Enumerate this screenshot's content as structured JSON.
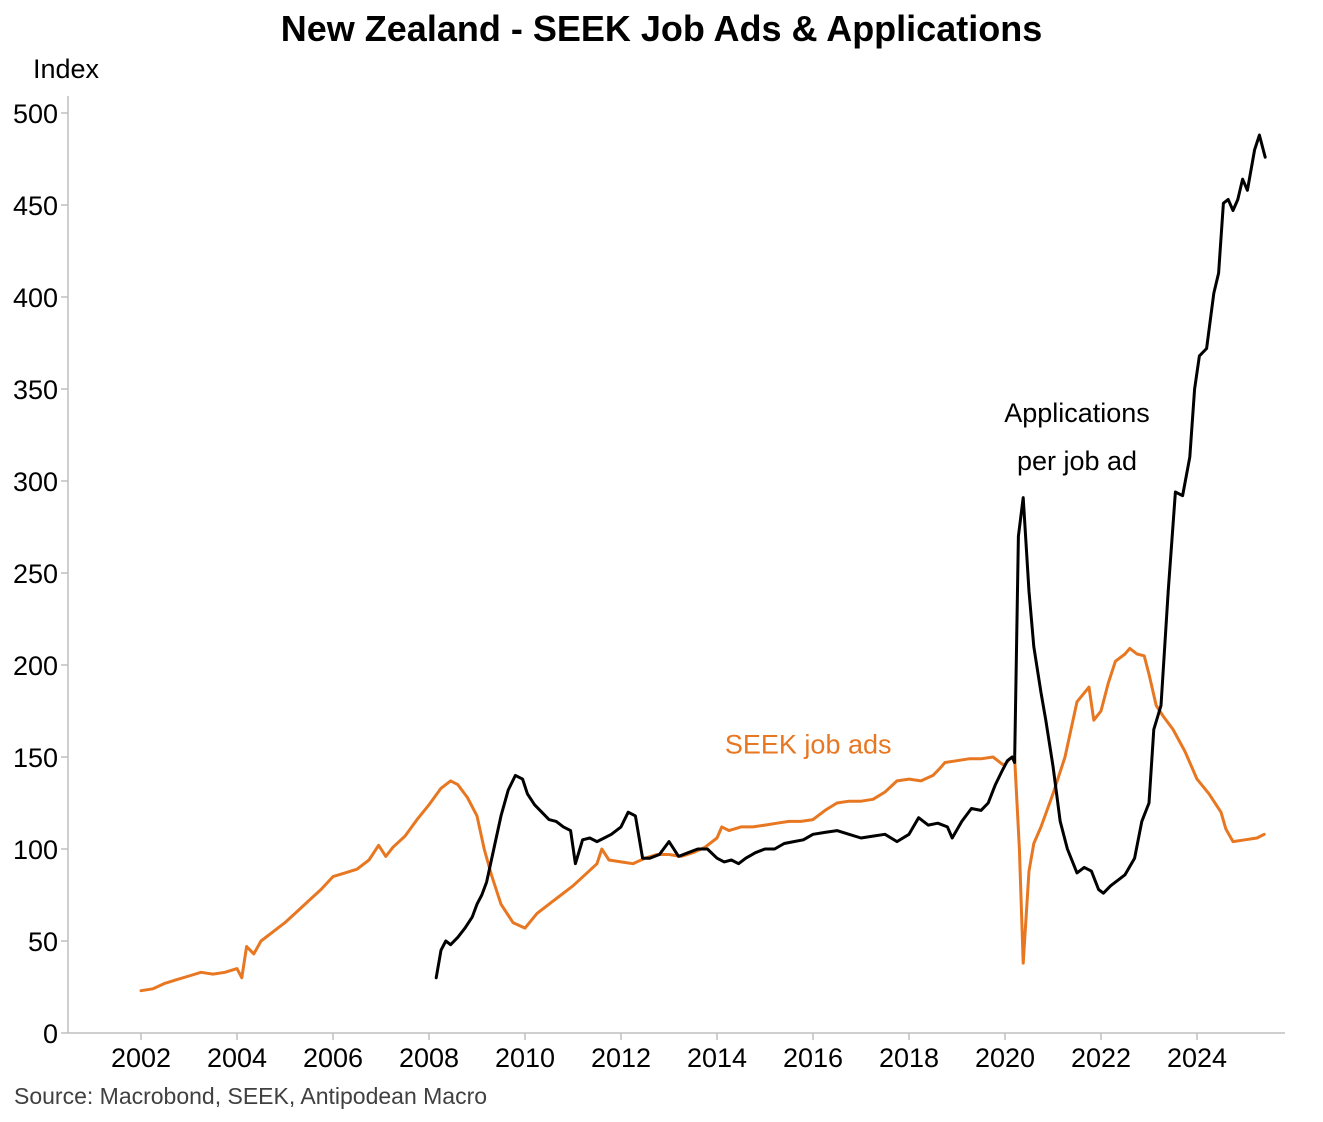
{
  "chart_data": {
    "type": "line",
    "title": "New Zealand - SEEK Job Ads & Applications",
    "ylabel": "Index",
    "source": "Source: Macrobond, SEEK, Antipodean Macro",
    "xlim": [
      2001.0,
      2025.75
    ],
    "ylim": [
      0,
      510
    ],
    "x_ticks": [
      2002,
      2004,
      2006,
      2008,
      2010,
      2012,
      2014,
      2016,
      2018,
      2020,
      2022,
      2024
    ],
    "y_ticks": [
      0,
      50,
      100,
      150,
      200,
      250,
      300,
      350,
      400,
      450,
      500
    ],
    "grid": false,
    "legend": "none (inline labels)",
    "series": [
      {
        "name": "SEEK job ads",
        "color": "#E87722",
        "points": [
          [
            2002.0,
            23
          ],
          [
            2002.25,
            24
          ],
          [
            2002.5,
            27
          ],
          [
            2002.75,
            29
          ],
          [
            2003.0,
            31
          ],
          [
            2003.25,
            33
          ],
          [
            2003.5,
            32
          ],
          [
            2003.75,
            33
          ],
          [
            2004.0,
            35
          ],
          [
            2004.1,
            30
          ],
          [
            2004.2,
            47
          ],
          [
            2004.35,
            43
          ],
          [
            2004.5,
            50
          ],
          [
            2004.75,
            55
          ],
          [
            2005.0,
            60
          ],
          [
            2005.25,
            66
          ],
          [
            2005.5,
            72
          ],
          [
            2005.75,
            78
          ],
          [
            2006.0,
            85
          ],
          [
            2006.25,
            87
          ],
          [
            2006.5,
            89
          ],
          [
            2006.75,
            94
          ],
          [
            2006.95,
            102
          ],
          [
            2007.1,
            96
          ],
          [
            2007.25,
            101
          ],
          [
            2007.5,
            107
          ],
          [
            2007.75,
            116
          ],
          [
            2008.0,
            124
          ],
          [
            2008.25,
            133
          ],
          [
            2008.45,
            137
          ],
          [
            2008.6,
            135
          ],
          [
            2008.8,
            128
          ],
          [
            2009.0,
            118
          ],
          [
            2009.15,
            100
          ],
          [
            2009.3,
            86
          ],
          [
            2009.5,
            70
          ],
          [
            2009.75,
            60
          ],
          [
            2010.0,
            57
          ],
          [
            2010.25,
            65
          ],
          [
            2010.5,
            70
          ],
          [
            2010.75,
            75
          ],
          [
            2011.0,
            80
          ],
          [
            2011.25,
            86
          ],
          [
            2011.5,
            92
          ],
          [
            2011.6,
            100
          ],
          [
            2011.75,
            94
          ],
          [
            2012.0,
            93
          ],
          [
            2012.25,
            92
          ],
          [
            2012.5,
            95
          ],
          [
            2012.75,
            97
          ],
          [
            2013.0,
            97
          ],
          [
            2013.25,
            96
          ],
          [
            2013.5,
            98
          ],
          [
            2013.75,
            101
          ],
          [
            2014.0,
            106
          ],
          [
            2014.1,
            112
          ],
          [
            2014.25,
            110
          ],
          [
            2014.5,
            112
          ],
          [
            2014.75,
            112
          ],
          [
            2015.0,
            113
          ],
          [
            2015.25,
            114
          ],
          [
            2015.5,
            115
          ],
          [
            2015.75,
            115
          ],
          [
            2016.0,
            116
          ],
          [
            2016.25,
            121
          ],
          [
            2016.5,
            125
          ],
          [
            2016.75,
            126
          ],
          [
            2017.0,
            126
          ],
          [
            2017.25,
            127
          ],
          [
            2017.5,
            131
          ],
          [
            2017.75,
            137
          ],
          [
            2018.0,
            138
          ],
          [
            2018.25,
            137
          ],
          [
            2018.5,
            140
          ],
          [
            2018.65,
            144
          ],
          [
            2018.75,
            147
          ],
          [
            2019.0,
            148
          ],
          [
            2019.25,
            149
          ],
          [
            2019.5,
            149
          ],
          [
            2019.75,
            150
          ],
          [
            2019.95,
            146
          ],
          [
            2020.0,
            146
          ],
          [
            2020.1,
            149
          ],
          [
            2020.2,
            150
          ],
          [
            2020.3,
            100
          ],
          [
            2020.38,
            38
          ],
          [
            2020.5,
            88
          ],
          [
            2020.6,
            103
          ],
          [
            2020.75,
            112
          ],
          [
            2021.0,
            130
          ],
          [
            2021.25,
            150
          ],
          [
            2021.5,
            180
          ],
          [
            2021.75,
            188
          ],
          [
            2021.85,
            170
          ],
          [
            2022.0,
            175
          ],
          [
            2022.15,
            190
          ],
          [
            2022.3,
            202
          ],
          [
            2022.5,
            206
          ],
          [
            2022.6,
            209
          ],
          [
            2022.75,
            206
          ],
          [
            2022.9,
            205
          ],
          [
            2023.0,
            195
          ],
          [
            2023.15,
            178
          ],
          [
            2023.3,
            172
          ],
          [
            2023.5,
            165
          ],
          [
            2023.75,
            153
          ],
          [
            2024.0,
            138
          ],
          [
            2024.25,
            130
          ],
          [
            2024.5,
            120
          ],
          [
            2024.6,
            111
          ],
          [
            2024.75,
            104
          ],
          [
            2025.0,
            105
          ],
          [
            2025.25,
            106
          ],
          [
            2025.4,
            108
          ]
        ]
      },
      {
        "name": "Applications per job ad",
        "color": "#000000",
        "points": [
          [
            2008.15,
            30
          ],
          [
            2008.25,
            45
          ],
          [
            2008.35,
            50
          ],
          [
            2008.45,
            48
          ],
          [
            2008.6,
            52
          ],
          [
            2008.75,
            57
          ],
          [
            2008.9,
            63
          ],
          [
            2009.0,
            70
          ],
          [
            2009.1,
            75
          ],
          [
            2009.2,
            82
          ],
          [
            2009.35,
            100
          ],
          [
            2009.5,
            118
          ],
          [
            2009.65,
            132
          ],
          [
            2009.8,
            140
          ],
          [
            2009.95,
            138
          ],
          [
            2010.05,
            130
          ],
          [
            2010.2,
            124
          ],
          [
            2010.35,
            120
          ],
          [
            2010.5,
            116
          ],
          [
            2010.65,
            115
          ],
          [
            2010.8,
            112
          ],
          [
            2010.95,
            110
          ],
          [
            2011.05,
            92
          ],
          [
            2011.2,
            105
          ],
          [
            2011.35,
            106
          ],
          [
            2011.5,
            104
          ],
          [
            2011.65,
            106
          ],
          [
            2011.8,
            108
          ],
          [
            2012.0,
            112
          ],
          [
            2012.15,
            120
          ],
          [
            2012.3,
            118
          ],
          [
            2012.45,
            95
          ],
          [
            2012.6,
            95
          ],
          [
            2012.8,
            97
          ],
          [
            2013.0,
            104
          ],
          [
            2013.2,
            96
          ],
          [
            2013.4,
            98
          ],
          [
            2013.6,
            100
          ],
          [
            2013.8,
            100
          ],
          [
            2014.0,
            95
          ],
          [
            2014.15,
            93
          ],
          [
            2014.3,
            94
          ],
          [
            2014.45,
            92
          ],
          [
            2014.6,
            95
          ],
          [
            2014.8,
            98
          ],
          [
            2015.0,
            100
          ],
          [
            2015.2,
            100
          ],
          [
            2015.4,
            103
          ],
          [
            2015.6,
            104
          ],
          [
            2015.8,
            105
          ],
          [
            2016.0,
            108
          ],
          [
            2016.25,
            109
          ],
          [
            2016.5,
            110
          ],
          [
            2016.75,
            108
          ],
          [
            2017.0,
            106
          ],
          [
            2017.25,
            107
          ],
          [
            2017.5,
            108
          ],
          [
            2017.75,
            104
          ],
          [
            2018.0,
            108
          ],
          [
            2018.2,
            117
          ],
          [
            2018.4,
            113
          ],
          [
            2018.6,
            114
          ],
          [
            2018.8,
            112
          ],
          [
            2018.9,
            106
          ],
          [
            2019.1,
            115
          ],
          [
            2019.3,
            122
          ],
          [
            2019.5,
            121
          ],
          [
            2019.65,
            125
          ],
          [
            2019.8,
            135
          ],
          [
            2019.95,
            143
          ],
          [
            2020.05,
            148
          ],
          [
            2020.15,
            150
          ],
          [
            2020.2,
            147
          ],
          [
            2020.28,
            270
          ],
          [
            2020.38,
            291
          ],
          [
            2020.5,
            240
          ],
          [
            2020.6,
            210
          ],
          [
            2020.75,
            185
          ],
          [
            2020.85,
            170
          ],
          [
            2021.0,
            145
          ],
          [
            2021.15,
            115
          ],
          [
            2021.3,
            100
          ],
          [
            2021.5,
            87
          ],
          [
            2021.65,
            90
          ],
          [
            2021.8,
            88
          ],
          [
            2021.95,
            78
          ],
          [
            2022.05,
            76
          ],
          [
            2022.2,
            80
          ],
          [
            2022.35,
            83
          ],
          [
            2022.5,
            86
          ],
          [
            2022.7,
            95
          ],
          [
            2022.85,
            115
          ],
          [
            2023.0,
            125
          ],
          [
            2023.1,
            165
          ],
          [
            2023.25,
            178
          ],
          [
            2023.4,
            240
          ],
          [
            2023.55,
            294
          ],
          [
            2023.7,
            292
          ],
          [
            2023.85,
            313
          ],
          [
            2023.95,
            350
          ],
          [
            2024.05,
            368
          ],
          [
            2024.2,
            372
          ],
          [
            2024.35,
            402
          ],
          [
            2024.45,
            413
          ],
          [
            2024.55,
            451
          ],
          [
            2024.65,
            453
          ],
          [
            2024.75,
            447
          ],
          [
            2024.85,
            453
          ],
          [
            2024.95,
            464
          ],
          [
            2025.05,
            458
          ],
          [
            2025.2,
            480
          ],
          [
            2025.3,
            488
          ],
          [
            2025.42,
            476
          ]
        ]
      }
    ],
    "annotations": [
      {
        "text": "SEEK job ads",
        "color": "#E87722",
        "x": 2015.9,
        "y": 152
      },
      {
        "text": "Applications",
        "color": "#000000",
        "x": 2021.5,
        "y": 332
      },
      {
        "text": "per job ad",
        "color": "#000000",
        "x": 2021.5,
        "y": 306
      }
    ]
  }
}
